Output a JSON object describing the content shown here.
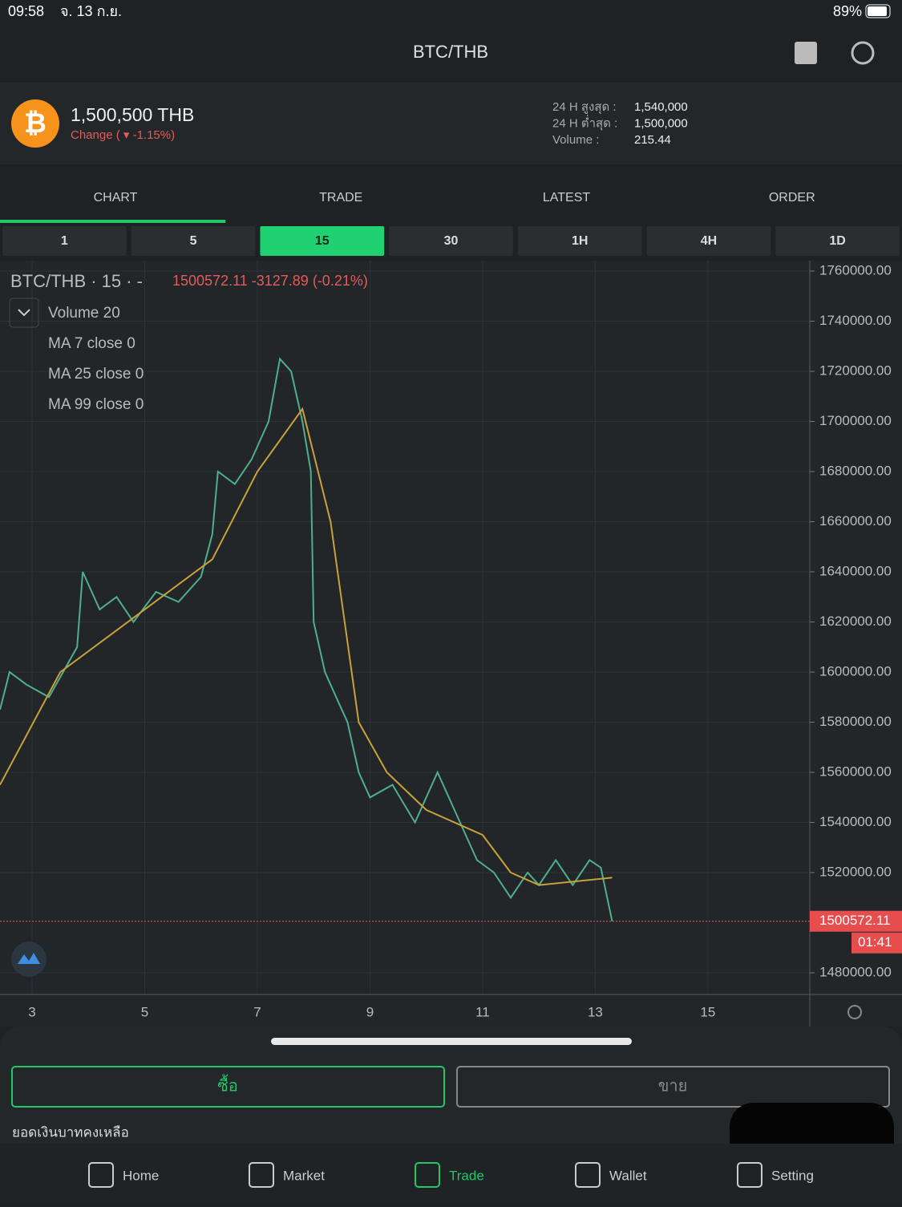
{
  "status": {
    "time": "09:58",
    "date": "จ. 13 ก.ย.",
    "battery": "89%"
  },
  "header": {
    "title": "BTC/THB"
  },
  "ticker": {
    "price": "1,500,500 THB",
    "change": "Change ( ▾ -1.15%)",
    "stats": [
      {
        "label": "24 H สูงสุด :",
        "value": "1,540,000"
      },
      {
        "label": "24 H ต่ำสุด :",
        "value": "1,500,000"
      },
      {
        "label": "Volume :",
        "value": "215.44"
      }
    ]
  },
  "tabs": {
    "items": [
      "CHART",
      "TRADE",
      "LATEST",
      "ORDER"
    ],
    "active": 0
  },
  "intervals": {
    "items": [
      "1",
      "5",
      "15",
      "30",
      "1H",
      "4H",
      "1D"
    ],
    "active": 2
  },
  "chart_data": {
    "type": "line",
    "symbol": "BTC/THB · 15 · -",
    "quote": "1500572.11  -3127.89 (-0.21%)",
    "indicators": [
      "Volume 20",
      "MA 7 close 0",
      "MA 25 close 0",
      "MA 99 close 0"
    ],
    "xlim": [
      2.43,
      16.81
    ],
    "ylim": [
      1471360,
      1764160
    ],
    "xticks": [
      3,
      5,
      7,
      9,
      11,
      13,
      15
    ],
    "yticks": [
      {
        "value": 1760000,
        "label": "1760000.00"
      },
      {
        "value": 1740000,
        "label": "1740000.00"
      },
      {
        "value": 1720000,
        "label": "1720000.00"
      },
      {
        "value": 1700000,
        "label": "1700000.00"
      },
      {
        "value": 1680000,
        "label": "1680000.00"
      },
      {
        "value": 1660000,
        "label": "1660000.00"
      },
      {
        "value": 1640000,
        "label": "1640000.00"
      },
      {
        "value": 1620000,
        "label": "1620000.00"
      },
      {
        "value": 1600000,
        "label": "1600000.00"
      },
      {
        "value": 1580000,
        "label": "1580000.00"
      },
      {
        "value": 1560000,
        "label": "1560000.00"
      },
      {
        "value": 1540000,
        "label": "1540000.00"
      },
      {
        "value": 1520000,
        "label": "1520000.00"
      },
      {
        "value": 1480000,
        "label": "1480000.00"
      }
    ],
    "series": [
      {
        "name": "Price",
        "color": "#4fae8c",
        "x": [
          2.43,
          2.6,
          2.9,
          3.3,
          3.8,
          3.9,
          4.2,
          4.5,
          4.8,
          5.2,
          5.6,
          6.0,
          6.2,
          6.3,
          6.6,
          6.9,
          7.2,
          7.4,
          7.6,
          7.8,
          7.95,
          8.0,
          8.2,
          8.4,
          8.6,
          8.8,
          9.0,
          9.4,
          9.8,
          10.2,
          10.5,
          10.9,
          11.2,
          11.5,
          11.8,
          12.0,
          12.3,
          12.6,
          12.9,
          13.1,
          13.3
        ],
        "values": [
          1585000,
          1600000,
          1595000,
          1590000,
          1610000,
          1640000,
          1625000,
          1630000,
          1620000,
          1632000,
          1628000,
          1638000,
          1655000,
          1680000,
          1675000,
          1685000,
          1700000,
          1725000,
          1720000,
          1700000,
          1680000,
          1620000,
          1600000,
          1590000,
          1580000,
          1560000,
          1550000,
          1555000,
          1540000,
          1560000,
          1545000,
          1525000,
          1520000,
          1510000,
          1520000,
          1515000,
          1525000,
          1515000,
          1525000,
          1522000,
          1500572
        ]
      },
      {
        "name": "MA 99",
        "color": "#c9a13a",
        "x": [
          2.43,
          3.5,
          5,
          6.2,
          7,
          7.8,
          8.3,
          8.8,
          9.3,
          10,
          11,
          11.5,
          12,
          13.3
        ],
        "values": [
          1555000,
          1600000,
          1625000,
          1645000,
          1680000,
          1705000,
          1660000,
          1580000,
          1560000,
          1545000,
          1535000,
          1520000,
          1515000,
          1518000
        ]
      }
    ],
    "last_price": {
      "value": 1500572.11,
      "label": "1500572.11"
    },
    "countdown": "01:41"
  },
  "actions": {
    "buy": "ซื้อ",
    "sell": "ขาย",
    "balance": "ยอดเงินบาทคงเหลือ"
  },
  "nav": {
    "items": [
      "Home",
      "Market",
      "Trade",
      "Wallet",
      "Setting"
    ],
    "active": 2
  }
}
